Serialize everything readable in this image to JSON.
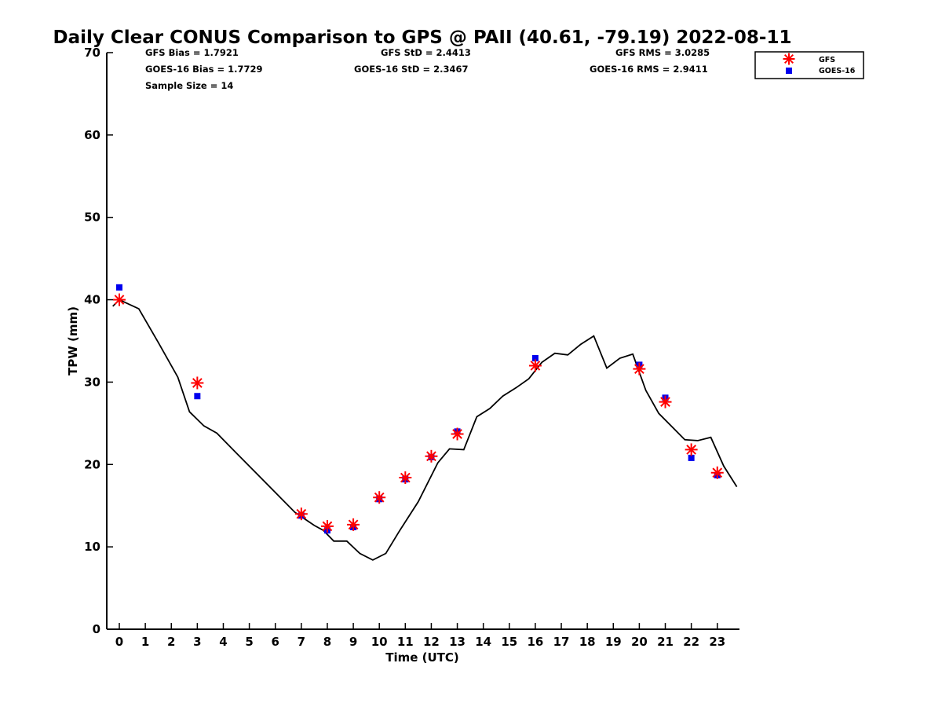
{
  "chart_data": {
    "type": "scatter",
    "title": "Daily Clear CONUS Comparison to GPS @ PAII (40.61, -79.19) 2022-08-11",
    "xlabel": "Time (UTC)",
    "ylabel": "TPW (mm)",
    "xlim": [
      -0.5,
      23.8
    ],
    "ylim": [
      0,
      70
    ],
    "x_ticks": [
      0,
      1,
      2,
      3,
      4,
      5,
      6,
      7,
      8,
      9,
      10,
      11,
      12,
      13,
      14,
      15,
      16,
      17,
      18,
      19,
      20,
      21,
      22,
      23
    ],
    "y_ticks": [
      0,
      10,
      20,
      30,
      40,
      50,
      60,
      70
    ],
    "grid": false,
    "legend_position": "top-right",
    "stats": {
      "gfs_bias": "GFS Bias = 1.7921",
      "goes_bias": "GOES-16 Bias = 1.7729",
      "sample_size": "Sample Size = 14",
      "gfs_std": "GFS StD = 2.4413",
      "goes_std": "GOES-16 StD = 2.3467",
      "gfs_rms": "GFS RMS = 3.0285",
      "goes_rms": "GOES-16 RMS = 2.9411"
    },
    "series": [
      {
        "name": "GFS",
        "marker": "asterisk",
        "color": "#ff0000",
        "x": [
          0,
          3,
          7,
          8,
          9,
          10,
          11,
          12,
          13,
          16,
          20,
          21,
          22,
          23
        ],
        "y": [
          40.0,
          29.9,
          14.0,
          12.5,
          12.7,
          16.0,
          18.4,
          21.0,
          23.7,
          32.0,
          31.6,
          27.6,
          21.8,
          19.0
        ]
      },
      {
        "name": "GOES-16",
        "marker": "square",
        "color": "#0000ee",
        "x": [
          0,
          3,
          7,
          8,
          9,
          10,
          11,
          12,
          13,
          16,
          20,
          21,
          22,
          23
        ],
        "y": [
          41.5,
          28.3,
          13.8,
          12.0,
          12.4,
          15.8,
          18.2,
          20.9,
          24.0,
          32.9,
          32.1,
          28.1,
          20.8,
          18.7
        ]
      },
      {
        "line": "gps",
        "marker": "none",
        "color": "#000000",
        "x": [
          -0.25,
          0,
          0.75,
          1.5,
          2.25,
          2.7,
          3.25,
          3.75,
          4.5,
          5.25,
          6,
          6.75,
          7.5,
          7.85,
          8.25,
          8.75,
          9.25,
          9.75,
          10.25,
          10.75,
          11.5,
          12.25,
          12.7,
          13.25,
          13.75,
          14.25,
          14.75,
          15.25,
          15.75,
          16.25,
          16.75,
          17.25,
          17.75,
          18.25,
          18.75,
          19.25,
          19.75,
          20.25,
          20.75,
          21.25,
          21.75,
          22.25,
          22.75,
          23.25,
          23.75
        ],
        "y": [
          39.2,
          40.0,
          38.9,
          34.8,
          30.6,
          26.4,
          24.7,
          23.8,
          21.4,
          19.0,
          16.6,
          14.2,
          12.6,
          12.0,
          10.7,
          10.7,
          9.2,
          8.4,
          9.2,
          11.8,
          15.5,
          20.2,
          21.9,
          21.8,
          25.8,
          26.8,
          28.3,
          29.3,
          30.4,
          32.4,
          33.5,
          33.3,
          34.6,
          35.6,
          31.7,
          32.9,
          33.4,
          29.0,
          26.2,
          24.6,
          23.0,
          22.9,
          23.3,
          19.8,
          17.3
        ]
      }
    ]
  },
  "colors": {
    "gfs": "#ff0000",
    "goes": "#0000ee",
    "gps_line": "#000000",
    "axis": "#000000"
  }
}
